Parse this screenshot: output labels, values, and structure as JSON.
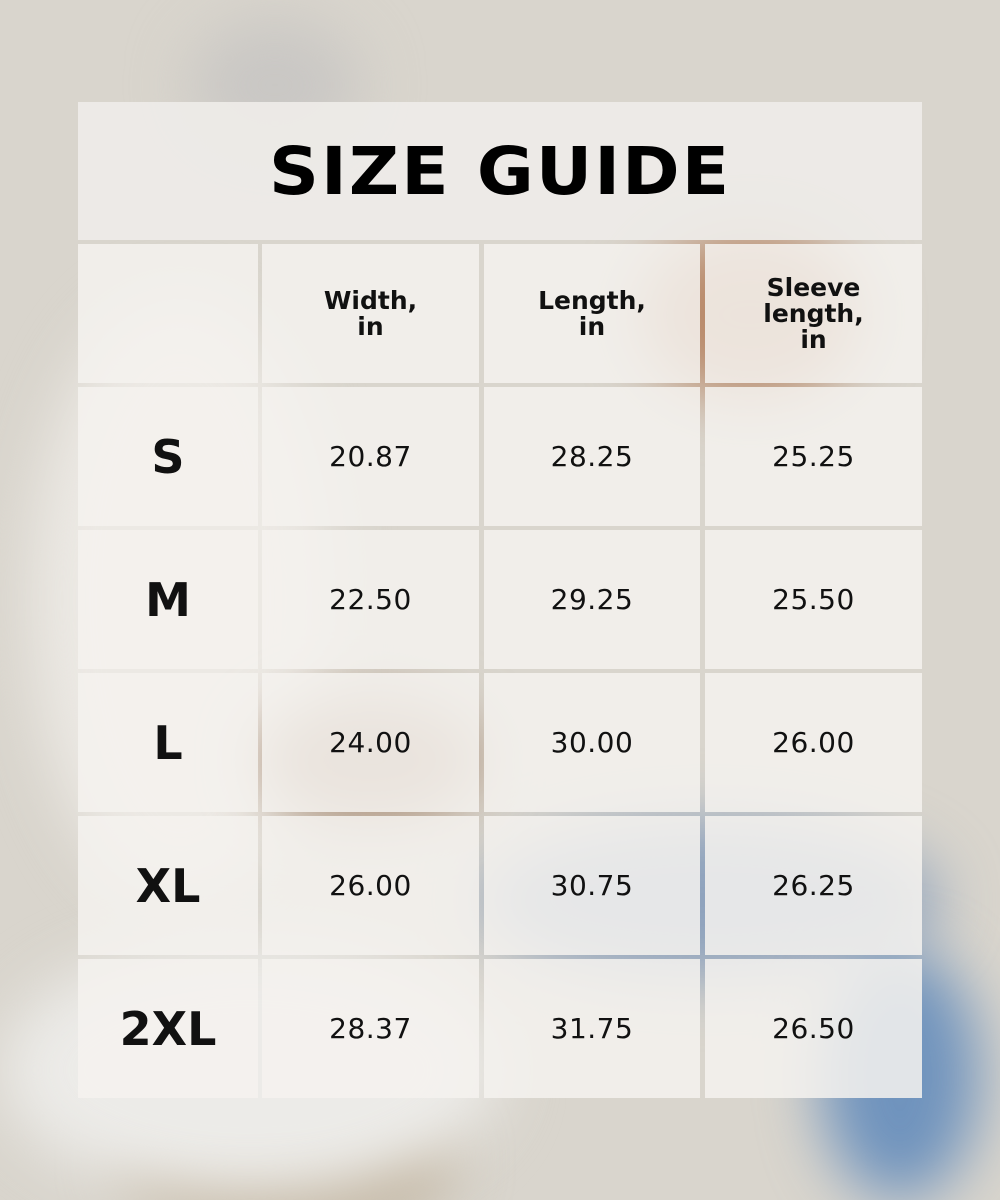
{
  "title": "SIZE GUIDE",
  "columns": [
    "",
    "Width,\nin",
    "Length,\nin",
    "Sleeve\nlength,\nin"
  ],
  "rows": [
    {
      "size": "S",
      "values": [
        "20.87",
        "28.25",
        "25.25"
      ]
    },
    {
      "size": "M",
      "values": [
        "22.50",
        "29.25",
        "25.50"
      ]
    },
    {
      "size": "L",
      "values": [
        "24.00",
        "30.00",
        "26.00"
      ]
    },
    {
      "size": "XL",
      "values": [
        "26.00",
        "30.75",
        "26.25"
      ]
    },
    {
      "size": "2XL",
      "values": [
        "28.37",
        "31.75",
        "26.50"
      ]
    }
  ],
  "colors": {
    "background": "#d9d5cd",
    "panel": "#f2f0ed",
    "text": "#000000"
  }
}
